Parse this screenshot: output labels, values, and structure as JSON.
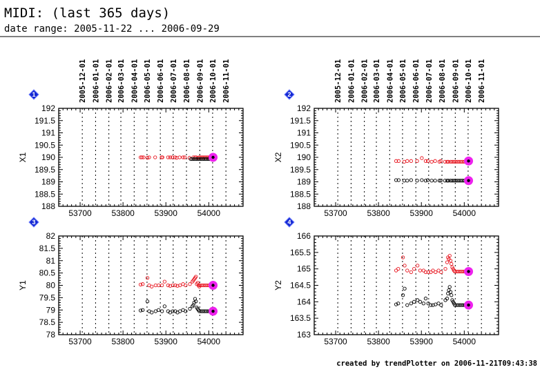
{
  "title": "MIDI: (last 365 days)",
  "subtitle": "date range: 2005-11-22 ... 2006-09-29",
  "footer": "created by trendPlotter on 2006-11-21T09:43:38",
  "colors": {
    "series_red": "#e8141e",
    "series_black": "#000000",
    "latest_marker": "#ee22ee",
    "badge": "#1428d2",
    "grid": "#000000"
  },
  "date_ticks": {
    "labels": [
      "2005-12-01",
      "2006-01-01",
      "2006-02-01",
      "2006-03-01",
      "2006-04-01",
      "2006-05-01",
      "2006-06-01",
      "2006-07-01",
      "2006-08-01",
      "2006-09-01",
      "2006-10-01",
      "2006-11-01"
    ],
    "mjd": [
      53705,
      53736,
      53767,
      53795,
      53826,
      53856,
      53887,
      53917,
      53948,
      53979,
      54009,
      54040
    ]
  },
  "chart_data": [
    {
      "id": "1",
      "type": "scatter",
      "ylabel": "X1",
      "xlim": [
        53650,
        54080
      ],
      "ylim": [
        188,
        192
      ],
      "xticks": [
        53700,
        53800,
        53900,
        54000
      ],
      "yticks": [
        188,
        188.5,
        189,
        189.5,
        190,
        190.5,
        191,
        191.5,
        192
      ],
      "ytick_labels": [
        "188",
        "188.5",
        "189",
        "189.5",
        "190",
        "190.5",
        "191",
        "191.5",
        "192"
      ],
      "series": [
        {
          "name": "red",
          "x": [
            53841,
            53844,
            53848,
            53857,
            53861,
            53875,
            53890,
            53892,
            53905,
            53910,
            53915,
            53921,
            53925,
            53932,
            53940,
            53944,
            53955,
            53964,
            53968,
            53971,
            53975,
            53978,
            53981,
            53984,
            53987,
            53990,
            53993,
            53996,
            53999,
            54002,
            54005
          ],
          "y": [
            190.0,
            190.0,
            190.0,
            189.98,
            190.0,
            190.0,
            190.0,
            190.0,
            190.0,
            190.0,
            190.0,
            190.0,
            189.98,
            190.0,
            190.0,
            190.0,
            189.98,
            190.0,
            190.0,
            190.0,
            189.98,
            190.0,
            190.0,
            190.0,
            190.0,
            190.0,
            190.0,
            190.0,
            190.0,
            190.0,
            190.0
          ]
        },
        {
          "name": "black",
          "x": [
            53958,
            53962,
            53966,
            53970,
            53974,
            53978,
            53982,
            53986,
            53990,
            53994,
            53998,
            54002,
            54006
          ],
          "y": [
            189.93,
            189.93,
            189.93,
            189.93,
            189.93,
            189.93,
            189.93,
            189.93,
            189.93,
            189.93,
            189.93,
            189.93,
            189.93
          ]
        }
      ],
      "latest": [
        {
          "x": 54010,
          "y": 190.0
        }
      ]
    },
    {
      "id": "2",
      "type": "scatter",
      "ylabel": "X2",
      "xlim": [
        53650,
        54080
      ],
      "ylim": [
        188,
        192
      ],
      "xticks": [
        53700,
        53800,
        53900,
        54000
      ],
      "yticks": [
        188,
        188.5,
        189,
        189.5,
        190,
        190.5,
        191,
        191.5,
        192
      ],
      "ytick_labels": [
        "188",
        "188.5",
        "189",
        "189.5",
        "190",
        "190.5",
        "191",
        "191.5",
        "192"
      ],
      "series": [
        {
          "name": "red",
          "x": [
            53841,
            53847,
            53860,
            53867,
            53876,
            53890,
            53901,
            53910,
            53915,
            53924,
            53932,
            53942,
            53945,
            53955,
            53960,
            53963,
            53968,
            53972,
            53976,
            53980,
            53984,
            53988,
            53992,
            53996,
            54000,
            54004,
            54008
          ],
          "y": [
            189.85,
            189.85,
            189.82,
            189.85,
            189.85,
            189.85,
            189.97,
            189.85,
            189.85,
            189.82,
            189.85,
            189.82,
            189.85,
            189.82,
            189.82,
            189.82,
            189.82,
            189.82,
            189.82,
            189.82,
            189.82,
            189.82,
            189.82,
            189.82,
            189.82,
            189.82,
            189.82
          ]
        },
        {
          "name": "black",
          "x": [
            53841,
            53847,
            53860,
            53867,
            53876,
            53890,
            53901,
            53910,
            53915,
            53924,
            53932,
            53942,
            53945,
            53955,
            53960,
            53963,
            53968,
            53972,
            53976,
            53980,
            53984,
            53988,
            53992,
            53996,
            54000,
            54004,
            54008
          ],
          "y": [
            189.07,
            189.07,
            189.05,
            189.05,
            189.07,
            189.05,
            189.07,
            189.05,
            189.07,
            189.05,
            189.05,
            189.05,
            189.05,
            189.05,
            189.05,
            189.05,
            189.05,
            189.05,
            189.05,
            189.05,
            189.05,
            189.05,
            189.05,
            189.05,
            189.05,
            189.05,
            189.05
          ]
        }
      ],
      "latest": [
        {
          "x": 54010,
          "y": 189.85
        },
        {
          "x": 54010,
          "y": 189.05
        }
      ]
    },
    {
      "id": "3",
      "type": "scatter",
      "ylabel": "Y1",
      "xlim": [
        53650,
        54080
      ],
      "ylim": [
        78,
        82
      ],
      "xticks": [
        53700,
        53800,
        53900,
        54000
      ],
      "yticks": [
        78,
        78.5,
        79,
        79.5,
        80,
        80.5,
        81,
        81.5,
        82
      ],
      "ytick_labels": [
        "78",
        "78.5",
        "79",
        "79.5",
        "80",
        "80.5",
        "81",
        "81.5",
        "82"
      ],
      "series": [
        {
          "name": "red",
          "x": [
            53841,
            53846,
            53857,
            53861,
            53867,
            53876,
            53883,
            53891,
            53897,
            53905,
            53910,
            53916,
            53922,
            53927,
            53933,
            53940,
            53946,
            53956,
            53962,
            53964,
            53966,
            53968,
            53970,
            53972,
            53974,
            53976,
            53978,
            53980,
            53984,
            53988,
            53992,
            53996,
            54000,
            54004,
            54008
          ],
          "y": [
            80.03,
            80.05,
            80.3,
            80.0,
            79.95,
            80.0,
            80.0,
            80.0,
            80.15,
            80.0,
            79.98,
            80.0,
            80.0,
            79.98,
            80.0,
            80.05,
            80.0,
            80.05,
            80.15,
            80.2,
            80.25,
            80.3,
            80.35,
            80.05,
            80.1,
            80.0,
            79.95,
            80.0,
            80.0,
            80.0,
            80.0,
            80.0,
            80.0,
            80.0,
            80.0
          ]
        },
        {
          "name": "black",
          "x": [
            53841,
            53846,
            53857,
            53861,
            53867,
            53876,
            53883,
            53891,
            53897,
            53905,
            53910,
            53916,
            53922,
            53927,
            53933,
            53940,
            53946,
            53956,
            53962,
            53964,
            53966,
            53968,
            53970,
            53972,
            53974,
            53976,
            53978,
            53982,
            53986,
            53990,
            53994,
            53998,
            54002,
            54006
          ],
          "y": [
            78.98,
            79.0,
            79.35,
            78.95,
            78.9,
            78.95,
            79.0,
            78.95,
            79.15,
            78.95,
            78.9,
            78.95,
            78.95,
            78.9,
            78.95,
            79.0,
            78.95,
            79.05,
            79.15,
            79.2,
            79.3,
            79.45,
            79.35,
            79.1,
            79.05,
            79.0,
            78.95,
            78.95,
            78.95,
            78.95,
            78.95,
            78.95,
            78.95,
            78.95
          ]
        }
      ],
      "latest": [
        {
          "x": 54010,
          "y": 80.0
        },
        {
          "x": 54010,
          "y": 78.95
        }
      ]
    },
    {
      "id": "4",
      "type": "scatter",
      "ylabel": "Y2",
      "xlim": [
        53650,
        54080
      ],
      "ylim": [
        163,
        166
      ],
      "xticks": [
        53700,
        53800,
        53900,
        54000
      ],
      "yticks": [
        163,
        163.5,
        164,
        164.5,
        165,
        165.5,
        166
      ],
      "ytick_labels": [
        "163",
        "163.5",
        "164",
        "164.5",
        "165",
        "165.5",
        "166"
      ],
      "series": [
        {
          "name": "red",
          "x": [
            53841,
            53846,
            53857,
            53861,
            53867,
            53876,
            53883,
            53891,
            53897,
            53905,
            53910,
            53916,
            53922,
            53927,
            53933,
            53940,
            53946,
            53956,
            53960,
            53962,
            53964,
            53966,
            53968,
            53970,
            53972,
            53974,
            53976,
            53978,
            53982,
            53986,
            53990,
            53994,
            53998,
            54002,
            54006
          ],
          "y": [
            164.95,
            165.0,
            165.35,
            165.1,
            164.95,
            164.9,
            165.0,
            165.1,
            164.95,
            164.95,
            164.9,
            164.9,
            164.9,
            164.95,
            164.9,
            164.95,
            164.9,
            165.0,
            165.2,
            165.35,
            165.3,
            165.4,
            165.25,
            165.15,
            165.05,
            165.0,
            164.95,
            164.92,
            164.92,
            164.92,
            164.92,
            164.92,
            164.92,
            164.92,
            164.92
          ]
        },
        {
          "name": "black",
          "x": [
            53841,
            53846,
            53857,
            53861,
            53867,
            53876,
            53883,
            53891,
            53897,
            53905,
            53910,
            53916,
            53922,
            53927,
            53933,
            53940,
            53946,
            53956,
            53960,
            53962,
            53964,
            53966,
            53968,
            53970,
            53972,
            53974,
            53976,
            53978,
            53982,
            53986,
            53990,
            53994,
            53998,
            54002,
            54006
          ],
          "y": [
            163.92,
            163.95,
            164.2,
            164.4,
            163.9,
            163.95,
            164.0,
            164.05,
            164.0,
            163.95,
            164.1,
            163.95,
            163.9,
            163.9,
            163.92,
            163.95,
            163.9,
            164.05,
            164.1,
            164.25,
            164.35,
            164.45,
            164.3,
            164.2,
            164.05,
            164.0,
            163.95,
            163.9,
            163.9,
            163.9,
            163.9,
            163.9,
            163.9,
            163.9,
            163.9
          ]
        }
      ],
      "latest": [
        {
          "x": 54010,
          "y": 164.92
        },
        {
          "x": 54010,
          "y": 163.9
        }
      ]
    }
  ]
}
